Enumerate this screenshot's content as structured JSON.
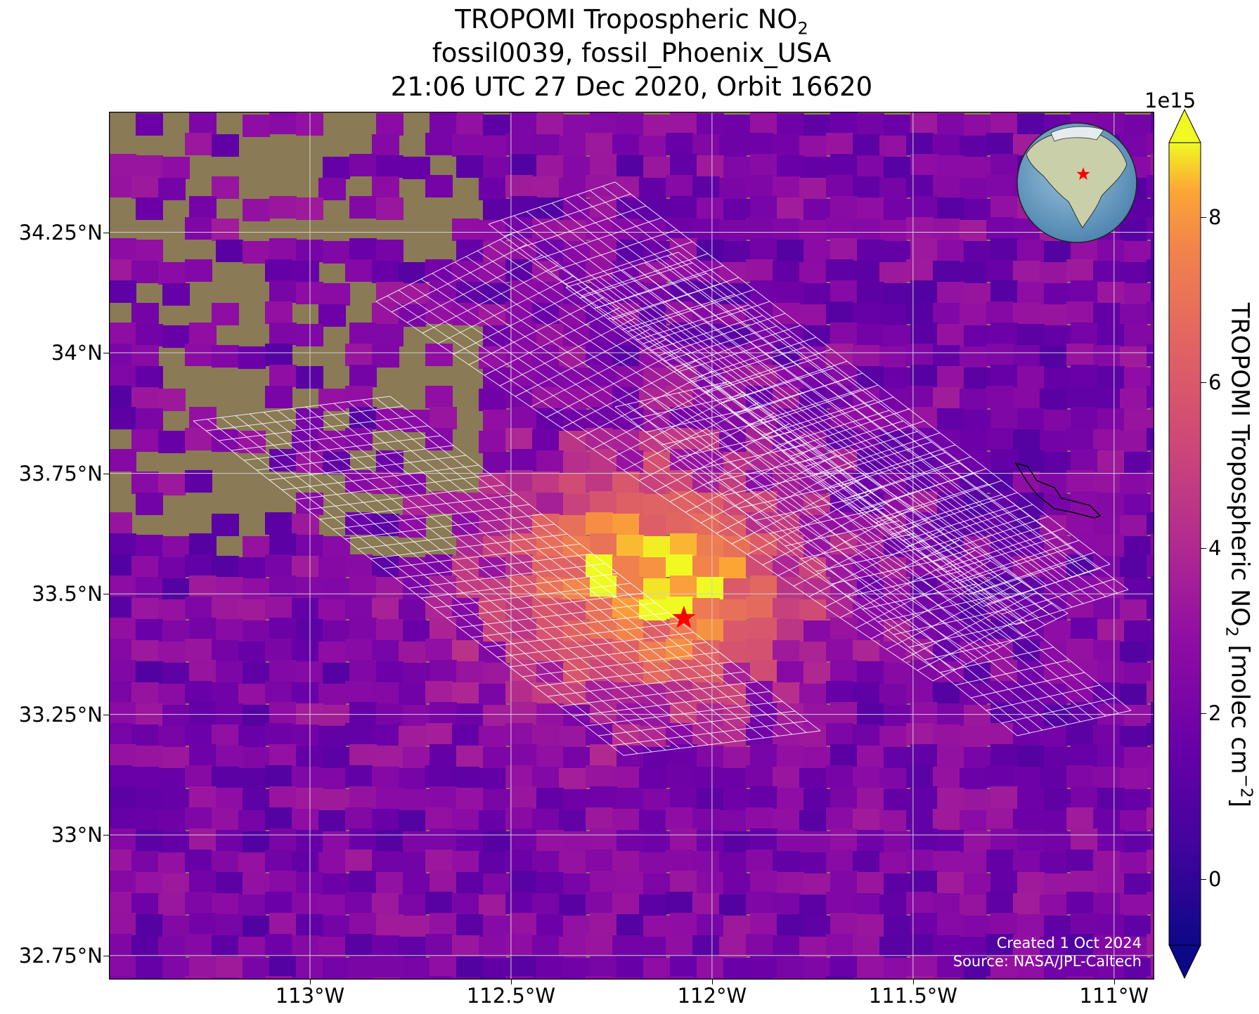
{
  "title": {
    "line1_prefix": "TROPOMI Tropospheric NO",
    "line1_sub": "2",
    "line2": "fossil0039, fossil_Phoenix_USA",
    "line3": "21:06 UTC 27 Dec 2020, Orbit 16620"
  },
  "map": {
    "lon_range": [
      -113.5,
      -110.9
    ],
    "lat_range": [
      32.7,
      34.5
    ],
    "lat_ticks": [
      {
        "value": 34.25,
        "label": "34.25°N"
      },
      {
        "value": 34.0,
        "label": "34°N"
      },
      {
        "value": 33.75,
        "label": "33.75°N"
      },
      {
        "value": 33.5,
        "label": "33.5°N"
      },
      {
        "value": 33.25,
        "label": "33.25°N"
      },
      {
        "value": 33.0,
        "label": "33°N"
      },
      {
        "value": 32.75,
        "label": "32.75°N"
      }
    ],
    "lon_ticks": [
      {
        "value": -113.0,
        "label": "113°W"
      },
      {
        "value": -112.5,
        "label": "112.5°W"
      },
      {
        "value": -112.0,
        "label": "112°W"
      },
      {
        "value": -111.5,
        "label": "111.5°W"
      },
      {
        "value": -111.0,
        "label": "111°W"
      }
    ],
    "source_marker": {
      "lon": -112.07,
      "lat": 33.45,
      "color": "#ff0000",
      "icon": "star-icon"
    },
    "grid": true,
    "basemap": "satellite imagery",
    "inset": "globe centered on North America with red star at target"
  },
  "colorbar": {
    "cmap": "plasma",
    "min": -0.8,
    "max": 8.9,
    "ticks": [
      {
        "value": 0,
        "label": "0"
      },
      {
        "value": 2,
        "label": "2"
      },
      {
        "value": 4,
        "label": "4"
      },
      {
        "value": 6,
        "label": "6"
      },
      {
        "value": 8,
        "label": "8"
      }
    ],
    "exponent": "1e15",
    "label_prefix": "TROPOMI Tropospheric NO",
    "label_sub": "2",
    "label_mid": " [molec cm",
    "label_sup": "−2",
    "label_end": "]",
    "extend": "both"
  },
  "credits": {
    "created": "Created 1 Oct 2024",
    "source": "Source: NASA/JPL-Caltech"
  }
}
